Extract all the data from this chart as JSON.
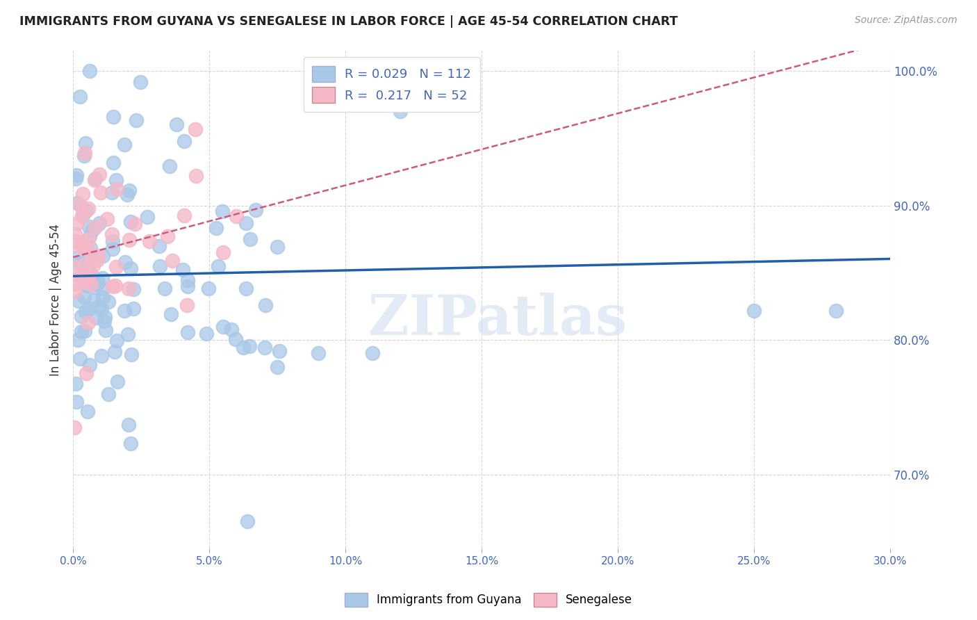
{
  "title": "IMMIGRANTS FROM GUYANA VS SENEGALESE IN LABOR FORCE | AGE 45-54 CORRELATION CHART",
  "source": "Source: ZipAtlas.com",
  "ylabel_label": "In Labor Force | Age 45-54",
  "xmin": 0.0,
  "xmax": 0.3,
  "ymin": 0.645,
  "ymax": 1.015,
  "blue_color": "#a8c8e8",
  "pink_color": "#f5b8c8",
  "trend_blue": "#2060a8",
  "trend_pink": "#d05878",
  "R_blue": 0.029,
  "N_blue": 112,
  "R_pink": 0.217,
  "N_pink": 52,
  "watermark": "ZIPatlas",
  "legend_blue_label": "Immigrants from Guyana",
  "legend_pink_label": "Senegalese",
  "grid_color": "#cccccc",
  "title_color": "#222222",
  "source_color": "#999999",
  "tick_color": "#4466bb",
  "ytick_vals": [
    0.7,
    0.8,
    0.9,
    1.0
  ],
  "ytick_labels": [
    "70.0%",
    "80.0%",
    "90.0%",
    "100.0%"
  ],
  "xtick_vals": [
    0.0,
    0.05,
    0.1,
    0.15,
    0.2,
    0.25,
    0.3
  ],
  "xtick_labels": [
    "0.0%",
    "5.0%",
    "10.0%",
    "15.0%",
    "20.0%",
    "25.0%",
    "30.0%"
  ]
}
